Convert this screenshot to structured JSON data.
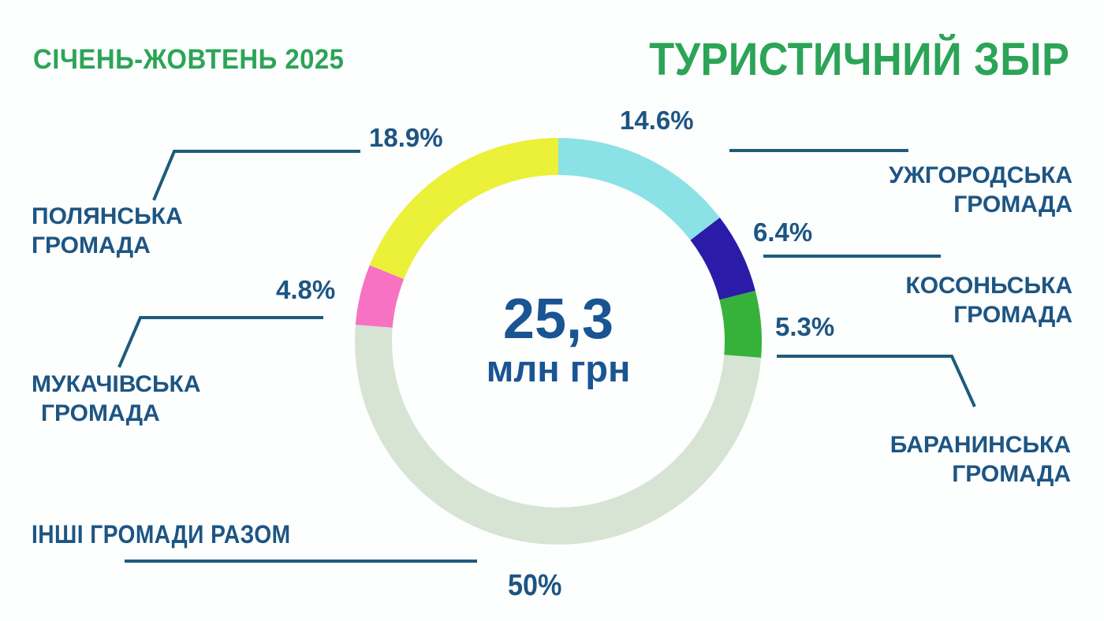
{
  "header": {
    "period": "СІЧЕНЬ-ЖОВТЕНЬ 2025",
    "title": "ТУРИСТИЧНИЙ ЗБІР"
  },
  "colors": {
    "background": "#fdfefe",
    "title_green": "#2ca457",
    "label_blue": "#1d5583",
    "line_blue": "#1e5b7d",
    "center_blue": "#1a5493"
  },
  "chart_data": {
    "type": "pie",
    "style": "donut",
    "title": "ТУРИСТИЧНИЙ ЗБІР",
    "subtitle": "СІЧЕНЬ-ЖОВТЕНЬ 2025",
    "total": 100,
    "start_angle_deg": 0,
    "direction": "clockwise-from-top",
    "center": {
      "value": "25,3",
      "unit": "млн грн"
    },
    "legend_position": "around-callouts",
    "slices": [
      {
        "id": "uzhhorodska",
        "label": "УЖГОРОДСЬКА ГРОМАДА",
        "line1": "УЖГОРОДСЬКА",
        "line2": "ГРОМАДА",
        "value": 14.6,
        "pct_label": "14.6%",
        "color": "#8be2e6"
      },
      {
        "id": "kosonska",
        "label": "КОСОНЬСЬКА ГРОМАДА",
        "line1": "КОСОНЬСЬКА",
        "line2": "ГРОМАДА",
        "value": 6.4,
        "pct_label": "6.4%",
        "color": "#2a1ca8"
      },
      {
        "id": "baraninska",
        "label": "БАРАНИНСЬКА ГРОМАДА",
        "line1": "БАРАНИНСЬКА",
        "line2": "ГРОМАДА",
        "value": 5.3,
        "pct_label": "5.3%",
        "color": "#36b23a"
      },
      {
        "id": "inshi",
        "label": "ІНШІ ГРОМАДИ РАЗОМ",
        "line1": "ІНШІ ГРОМАДИ РАЗОМ",
        "line2": "",
        "value": 50,
        "pct_label": "50%",
        "color": "#d7e3d3"
      },
      {
        "id": "mukachivska",
        "label": "МУКАЧІВСЬКА ГРОМАДА",
        "line1": "МУКАЧІВСЬКА",
        "line2": "ГРОМАДА",
        "value": 4.8,
        "pct_label": "4.8%",
        "color": "#f772c2"
      },
      {
        "id": "polyanska",
        "label": "ПОЛЯНСЬКА ГРОМАДА",
        "line1": "ПОЛЯНСЬКА",
        "line2": "ГРОМАДА",
        "value": 18.9,
        "pct_label": "18.9%",
        "color": "#ebf038"
      }
    ]
  }
}
